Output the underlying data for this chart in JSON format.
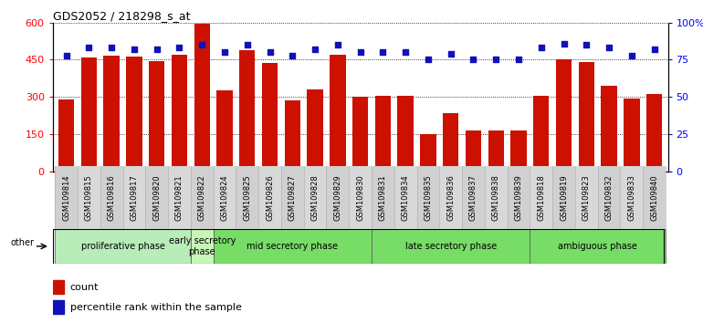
{
  "title": "GDS2052 / 218298_s_at",
  "samples": [
    "GSM109814",
    "GSM109815",
    "GSM109816",
    "GSM109817",
    "GSM109820",
    "GSM109821",
    "GSM109822",
    "GSM109824",
    "GSM109825",
    "GSM109826",
    "GSM109827",
    "GSM109828",
    "GSM109829",
    "GSM109830",
    "GSM109831",
    "GSM109834",
    "GSM109835",
    "GSM109836",
    "GSM109837",
    "GSM109838",
    "GSM109839",
    "GSM109818",
    "GSM109819",
    "GSM109823",
    "GSM109832",
    "GSM109833",
    "GSM109840"
  ],
  "counts": [
    290,
    460,
    465,
    462,
    445,
    470,
    595,
    325,
    490,
    437,
    285,
    330,
    470,
    300,
    305,
    305,
    150,
    235,
    165,
    165,
    165,
    305,
    450,
    440,
    345,
    295,
    310
  ],
  "percentiles": [
    78,
    83,
    83,
    82,
    82,
    83,
    85,
    80,
    85,
    80,
    78,
    82,
    85,
    80,
    80,
    80,
    75,
    79,
    75,
    75,
    75,
    83,
    86,
    85,
    83,
    78,
    82
  ],
  "bar_color": "#cc1100",
  "dot_color": "#1111bb",
  "count_ylim": [
    0,
    600
  ],
  "pct_ylim": [
    0,
    100
  ],
  "count_yticks": [
    0,
    150,
    300,
    450,
    600
  ],
  "pct_yticks": [
    0,
    25,
    50,
    75,
    100
  ],
  "pct_yticklabels": [
    "0",
    "25",
    "50",
    "75",
    "100%"
  ],
  "phase_defs": [
    {
      "label": "proliferative phase",
      "start": 0,
      "end": 6,
      "color": "#b8ecb8"
    },
    {
      "label": "early secretory\nphase",
      "start": 6,
      "end": 7,
      "color": "#c8f5b8"
    },
    {
      "label": "mid secretory phase",
      "start": 7,
      "end": 14,
      "color": "#77dd66"
    },
    {
      "label": "late secretory phase",
      "start": 14,
      "end": 21,
      "color": "#77dd66"
    },
    {
      "label": "ambiguous phase",
      "start": 21,
      "end": 27,
      "color": "#77dd66"
    }
  ],
  "xtick_bg_color": "#d8d8d8",
  "grid_color": "black",
  "title_fontsize": 9,
  "tick_fontsize": 6,
  "phase_fontsize": 7,
  "legend_fontsize": 8
}
